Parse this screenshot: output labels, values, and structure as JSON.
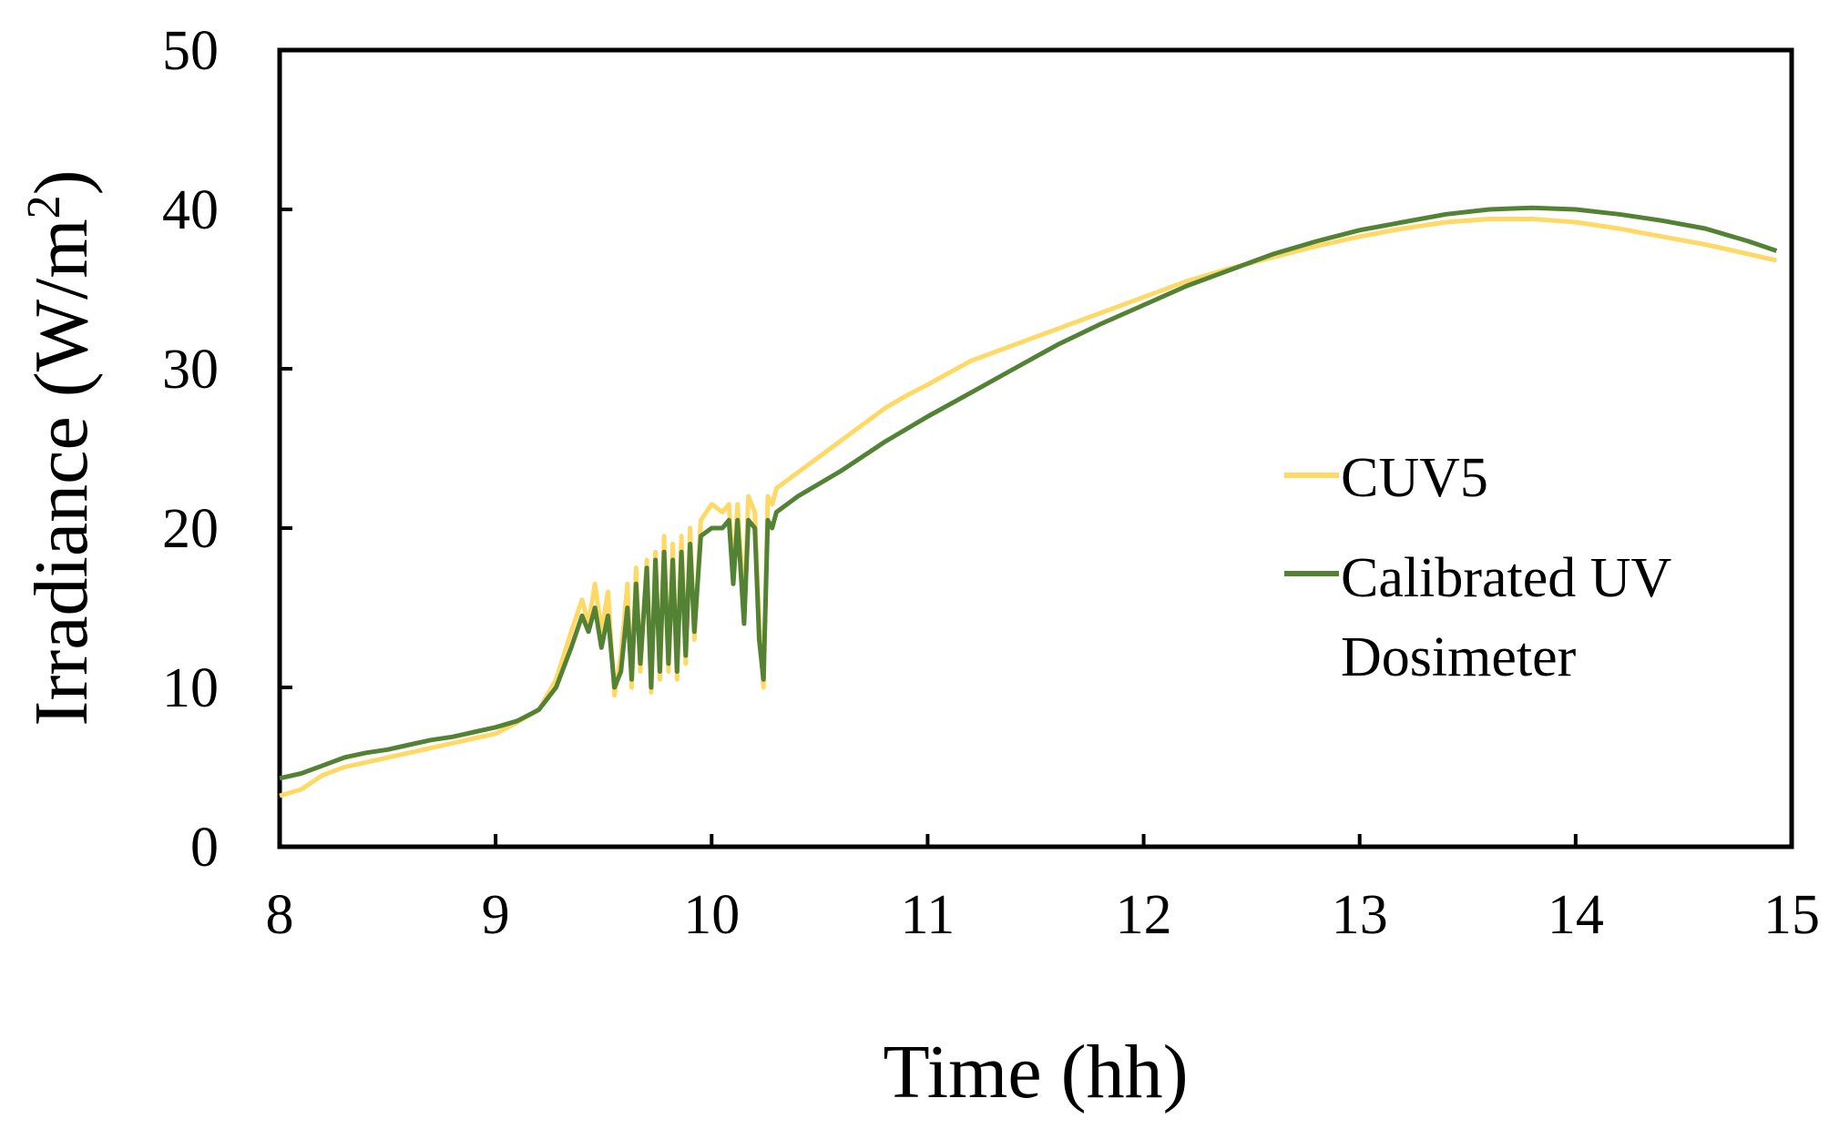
{
  "chart_data": {
    "type": "line",
    "title": "",
    "xlabel": "Time (hh)",
    "ylabel_main": "Irradiance (W/m",
    "ylabel_sup": "2",
    "ylabel_close": ")",
    "xlim": [
      8,
      15
    ],
    "ylim": [
      0,
      50
    ],
    "x_ticks": [
      "8",
      "9",
      "10",
      "11",
      "12",
      "13",
      "14",
      "15"
    ],
    "y_ticks": [
      "0",
      "10",
      "20",
      "30",
      "40",
      "50"
    ],
    "grid": false,
    "legend_position": "right",
    "series": [
      {
        "name": "CUV5",
        "color": "#FFD966",
        "points": [
          [
            8.0,
            3.2
          ],
          [
            8.1,
            3.6
          ],
          [
            8.2,
            4.5
          ],
          [
            8.3,
            5.0
          ],
          [
            8.4,
            5.3
          ],
          [
            8.5,
            5.6
          ],
          [
            8.6,
            5.9
          ],
          [
            8.7,
            6.2
          ],
          [
            8.8,
            6.5
          ],
          [
            8.9,
            6.8
          ],
          [
            9.0,
            7.1
          ],
          [
            9.1,
            7.8
          ],
          [
            9.2,
            8.6
          ],
          [
            9.28,
            10.5
          ],
          [
            9.35,
            13.5
          ],
          [
            9.4,
            15.5
          ],
          [
            9.43,
            14.0
          ],
          [
            9.46,
            16.5
          ],
          [
            9.49,
            13.5
          ],
          [
            9.52,
            16.0
          ],
          [
            9.55,
            9.5
          ],
          [
            9.58,
            12.0
          ],
          [
            9.61,
            16.5
          ],
          [
            9.63,
            10.0
          ],
          [
            9.65,
            17.5
          ],
          [
            9.67,
            11.0
          ],
          [
            9.7,
            18.0
          ],
          [
            9.72,
            9.7
          ],
          [
            9.74,
            18.5
          ],
          [
            9.76,
            10.5
          ],
          [
            9.78,
            19.5
          ],
          [
            9.8,
            11.0
          ],
          [
            9.82,
            19.0
          ],
          [
            9.84,
            10.5
          ],
          [
            9.86,
            19.5
          ],
          [
            9.88,
            11.5
          ],
          [
            9.9,
            20.0
          ],
          [
            9.92,
            13.0
          ],
          [
            9.95,
            20.5
          ],
          [
            10.0,
            21.5
          ],
          [
            10.05,
            21.0
          ],
          [
            10.08,
            21.5
          ],
          [
            10.1,
            17.0
          ],
          [
            10.12,
            21.5
          ],
          [
            10.15,
            15.0
          ],
          [
            10.17,
            22.0
          ],
          [
            10.2,
            21.0
          ],
          [
            10.22,
            14.0
          ],
          [
            10.24,
            10.0
          ],
          [
            10.26,
            22.0
          ],
          [
            10.28,
            21.5
          ],
          [
            10.3,
            22.5
          ],
          [
            10.4,
            23.5
          ],
          [
            10.5,
            24.5
          ],
          [
            10.6,
            25.5
          ],
          [
            10.7,
            26.5
          ],
          [
            10.8,
            27.5
          ],
          [
            10.9,
            28.3
          ],
          [
            11.0,
            29.0
          ],
          [
            11.2,
            30.5
          ],
          [
            11.4,
            31.5
          ],
          [
            11.6,
            32.5
          ],
          [
            11.8,
            33.5
          ],
          [
            12.0,
            34.5
          ],
          [
            12.2,
            35.5
          ],
          [
            12.4,
            36.3
          ],
          [
            12.6,
            37.0
          ],
          [
            12.8,
            37.7
          ],
          [
            13.0,
            38.3
          ],
          [
            13.2,
            38.8
          ],
          [
            13.4,
            39.2
          ],
          [
            13.6,
            39.4
          ],
          [
            13.8,
            39.4
          ],
          [
            14.0,
            39.2
          ],
          [
            14.2,
            38.8
          ],
          [
            14.4,
            38.3
          ],
          [
            14.6,
            37.8
          ],
          [
            14.8,
            37.2
          ],
          [
            14.93,
            36.8
          ]
        ]
      },
      {
        "name": "Calibrated UV Dosimeter",
        "color": "#548235",
        "points": [
          [
            8.0,
            4.3
          ],
          [
            8.1,
            4.6
          ],
          [
            8.2,
            5.1
          ],
          [
            8.3,
            5.6
          ],
          [
            8.4,
            5.9
          ],
          [
            8.5,
            6.1
          ],
          [
            8.6,
            6.4
          ],
          [
            8.7,
            6.7
          ],
          [
            8.8,
            6.9
          ],
          [
            8.9,
            7.2
          ],
          [
            9.0,
            7.5
          ],
          [
            9.1,
            7.9
          ],
          [
            9.2,
            8.6
          ],
          [
            9.28,
            10.0
          ],
          [
            9.35,
            12.5
          ],
          [
            9.4,
            14.5
          ],
          [
            9.43,
            13.5
          ],
          [
            9.46,
            15.0
          ],
          [
            9.49,
            12.5
          ],
          [
            9.52,
            14.5
          ],
          [
            9.55,
            10.0
          ],
          [
            9.58,
            11.0
          ],
          [
            9.61,
            15.0
          ],
          [
            9.63,
            10.5
          ],
          [
            9.65,
            16.5
          ],
          [
            9.67,
            11.5
          ],
          [
            9.7,
            17.5
          ],
          [
            9.72,
            10.0
          ],
          [
            9.74,
            18.0
          ],
          [
            9.76,
            11.0
          ],
          [
            9.78,
            18.5
          ],
          [
            9.8,
            11.5
          ],
          [
            9.82,
            18.0
          ],
          [
            9.84,
            11.0
          ],
          [
            9.86,
            18.5
          ],
          [
            9.88,
            12.0
          ],
          [
            9.9,
            19.0
          ],
          [
            9.92,
            13.5
          ],
          [
            9.95,
            19.5
          ],
          [
            10.0,
            20.0
          ],
          [
            10.05,
            20.0
          ],
          [
            10.08,
            20.5
          ],
          [
            10.1,
            16.5
          ],
          [
            10.12,
            20.5
          ],
          [
            10.15,
            14.0
          ],
          [
            10.17,
            20.5
          ],
          [
            10.2,
            20.0
          ],
          [
            10.22,
            13.0
          ],
          [
            10.24,
            10.5
          ],
          [
            10.26,
            20.5
          ],
          [
            10.28,
            20.0
          ],
          [
            10.3,
            21.0
          ],
          [
            10.4,
            22.0
          ],
          [
            10.5,
            22.8
          ],
          [
            10.6,
            23.6
          ],
          [
            10.7,
            24.5
          ],
          [
            10.8,
            25.4
          ],
          [
            10.9,
            26.2
          ],
          [
            11.0,
            27.0
          ],
          [
            11.2,
            28.5
          ],
          [
            11.4,
            30.0
          ],
          [
            11.6,
            31.5
          ],
          [
            11.8,
            32.8
          ],
          [
            12.0,
            34.0
          ],
          [
            12.2,
            35.2
          ],
          [
            12.4,
            36.2
          ],
          [
            12.6,
            37.2
          ],
          [
            12.8,
            38.0
          ],
          [
            13.0,
            38.7
          ],
          [
            13.2,
            39.2
          ],
          [
            13.4,
            39.7
          ],
          [
            13.6,
            40.0
          ],
          [
            13.8,
            40.1
          ],
          [
            14.0,
            40.0
          ],
          [
            14.2,
            39.7
          ],
          [
            14.4,
            39.3
          ],
          [
            14.6,
            38.8
          ],
          [
            14.8,
            38.0
          ],
          [
            14.93,
            37.4
          ]
        ]
      }
    ],
    "legend": [
      {
        "label_lines": [
          "CUV5"
        ]
      },
      {
        "label_lines": [
          "Calibrated UV",
          "Dosimeter"
        ]
      }
    ]
  }
}
